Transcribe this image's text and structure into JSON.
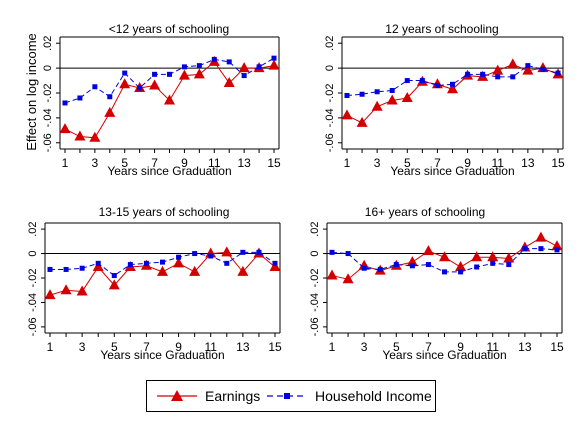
{
  "figure": {
    "ylabel": "Effect on log income",
    "legend": {
      "entries": [
        {
          "label": "Earnings",
          "color": "#d40000",
          "marker": "triangle"
        },
        {
          "label": "Household Income",
          "color": "#0000e0",
          "marker": "square"
        }
      ]
    }
  },
  "chart_data": [
    {
      "type": "line",
      "title": "<12 years of schooling",
      "xlabel": "Years since Graduation",
      "ylabel": "Effect on log income",
      "x": [
        1,
        2,
        3,
        4,
        5,
        6,
        7,
        8,
        9,
        10,
        11,
        12,
        13,
        14,
        15
      ],
      "xticks": [
        "1",
        "3",
        "5",
        "7",
        "9",
        "11",
        "13",
        "15"
      ],
      "yticks": [
        "-.06",
        "-.04",
        "-.02",
        "0",
        ".02"
      ],
      "ylim": [
        -0.065,
        0.025
      ],
      "reference_line": 0,
      "grid": false,
      "series": [
        {
          "name": "Earnings",
          "values": [
            -0.049,
            -0.055,
            -0.056,
            -0.036,
            -0.013,
            -0.016,
            -0.014,
            -0.026,
            -0.006,
            -0.005,
            0.005,
            -0.012,
            0.0,
            0.0,
            0.002
          ]
        },
        {
          "name": "Household Income",
          "values": [
            -0.028,
            -0.024,
            -0.015,
            -0.023,
            -0.004,
            -0.016,
            -0.005,
            -0.005,
            0.001,
            0.002,
            0.007,
            0.005,
            -0.006,
            0.001,
            0.008
          ]
        }
      ]
    },
    {
      "type": "line",
      "title": "12 years of schooling",
      "xlabel": "Years since Graduation",
      "ylabel": "Effect on log income",
      "x": [
        1,
        2,
        3,
        4,
        5,
        6,
        7,
        8,
        9,
        10,
        11,
        12,
        13,
        14,
        15
      ],
      "xticks": [
        "1",
        "3",
        "5",
        "7",
        "9",
        "11",
        "13",
        "15"
      ],
      "yticks": [
        "-.06",
        "-.04",
        "-.02",
        "0",
        ".02"
      ],
      "ylim": [
        -0.065,
        0.025
      ],
      "reference_line": 0,
      "grid": false,
      "series": [
        {
          "name": "Earnings",
          "values": [
            -0.038,
            -0.044,
            -0.031,
            -0.026,
            -0.024,
            -0.011,
            -0.013,
            -0.017,
            -0.006,
            -0.007,
            -0.002,
            0.003,
            -0.002,
            0.0,
            -0.005
          ]
        },
        {
          "name": "Household Income",
          "values": [
            -0.022,
            -0.021,
            -0.019,
            -0.018,
            -0.01,
            -0.01,
            -0.014,
            -0.013,
            -0.005,
            -0.005,
            -0.007,
            -0.007,
            0.002,
            -0.001,
            -0.004
          ]
        }
      ]
    },
    {
      "type": "line",
      "title": "13-15 years of schooling",
      "xlabel": "Years since Graduation",
      "ylabel": "Effect on log income",
      "x": [
        1,
        2,
        3,
        4,
        5,
        6,
        7,
        8,
        9,
        10,
        11,
        12,
        13,
        14,
        15
      ],
      "xticks": [
        "1",
        "3",
        "5",
        "7",
        "9",
        "11",
        "13",
        "15"
      ],
      "yticks": [
        "-.06",
        "-.04",
        "-.02",
        "0",
        ".02"
      ],
      "ylim": [
        -0.065,
        0.025
      ],
      "reference_line": 0,
      "grid": false,
      "series": [
        {
          "name": "Earnings",
          "values": [
            -0.034,
            -0.03,
            -0.031,
            -0.011,
            -0.026,
            -0.011,
            -0.01,
            -0.015,
            -0.008,
            -0.015,
            0.0,
            0.001,
            -0.015,
            0.0,
            -0.011
          ]
        },
        {
          "name": "Household Income",
          "values": [
            -0.013,
            -0.013,
            -0.012,
            -0.008,
            -0.018,
            -0.009,
            -0.008,
            -0.007,
            -0.003,
            0.0,
            -0.002,
            -0.008,
            0.001,
            0.001,
            -0.008
          ]
        }
      ]
    },
    {
      "type": "line",
      "title": "16+ years of schooling",
      "xlabel": "Years since Graduation",
      "ylabel": "Effect on log income",
      "x": [
        1,
        2,
        3,
        4,
        5,
        6,
        7,
        8,
        9,
        10,
        11,
        12,
        13,
        14,
        15
      ],
      "xticks": [
        "1",
        "3",
        "5",
        "7",
        "9",
        "11",
        "13",
        "15"
      ],
      "yticks": [
        "-.06",
        "-.04",
        "-.02",
        "0",
        ".02"
      ],
      "ylim": [
        -0.065,
        0.025
      ],
      "reference_line": 0,
      "grid": false,
      "series": [
        {
          "name": "Earnings",
          "values": [
            -0.018,
            -0.021,
            -0.01,
            -0.014,
            -0.01,
            -0.007,
            0.002,
            -0.003,
            -0.011,
            -0.003,
            -0.003,
            -0.004,
            0.005,
            0.013,
            0.006
          ]
        },
        {
          "name": "Household Income",
          "values": [
            0.001,
            0.0,
            -0.012,
            -0.013,
            -0.009,
            -0.01,
            -0.009,
            -0.015,
            -0.015,
            -0.011,
            -0.008,
            -0.009,
            0.004,
            0.004,
            0.003
          ]
        }
      ]
    }
  ]
}
